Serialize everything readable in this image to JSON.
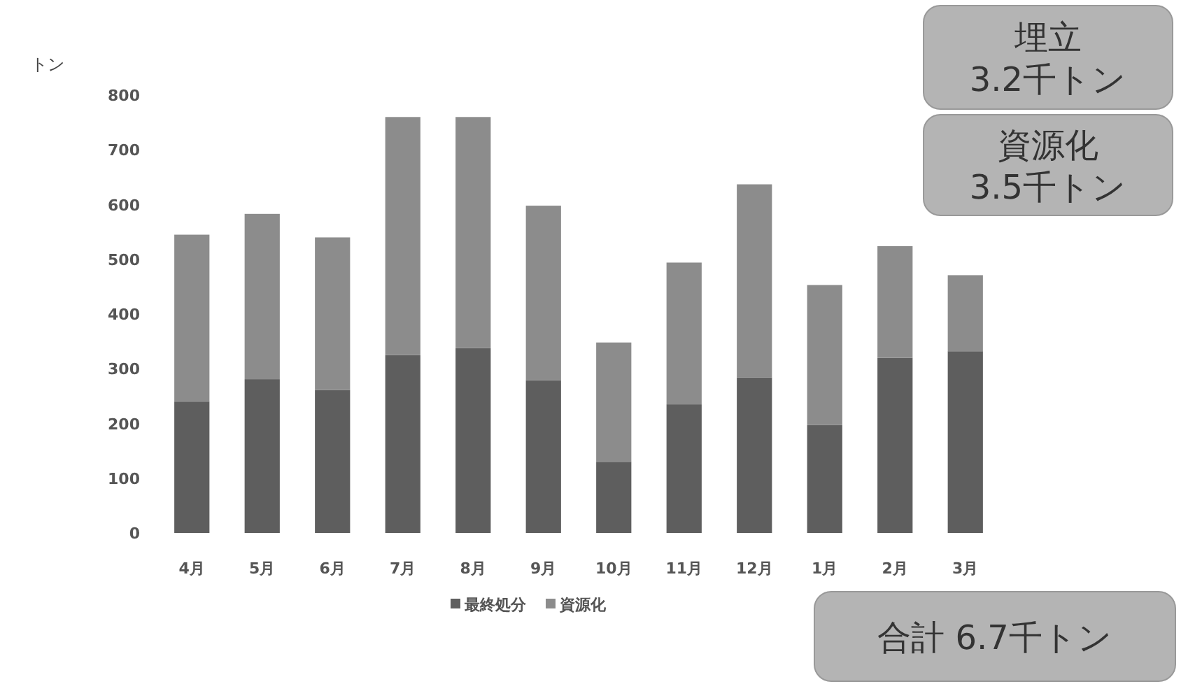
{
  "chart_data": {
    "type": "bar",
    "stacked": true,
    "ylabel": "トン",
    "categories": [
      "4月",
      "5月",
      "6月",
      "7月",
      "8月",
      "9月",
      "10月",
      "11月",
      "12月",
      "1月",
      "2月",
      "3月"
    ],
    "series": [
      {
        "name": "最終処分",
        "color": "#5e5e5e",
        "values": [
          240,
          281,
          261,
          325,
          338,
          279,
          130,
          235,
          284,
          197,
          320,
          332
        ]
      },
      {
        "name": "資源化",
        "color": "#8c8c8c",
        "values": [
          305,
          302,
          279,
          435,
          422,
          319,
          218,
          259,
          353,
          256,
          204,
          139
        ]
      }
    ],
    "ylim": [
      0,
      800
    ],
    "yticks": [
      0,
      100,
      200,
      300,
      400,
      500,
      600,
      700,
      800
    ],
    "grid": false,
    "legend": "bottom",
    "annotations": [
      "埋立\n3.2千トン",
      "資源化\n3.5千トン",
      "合計 6.7千トン"
    ]
  }
}
